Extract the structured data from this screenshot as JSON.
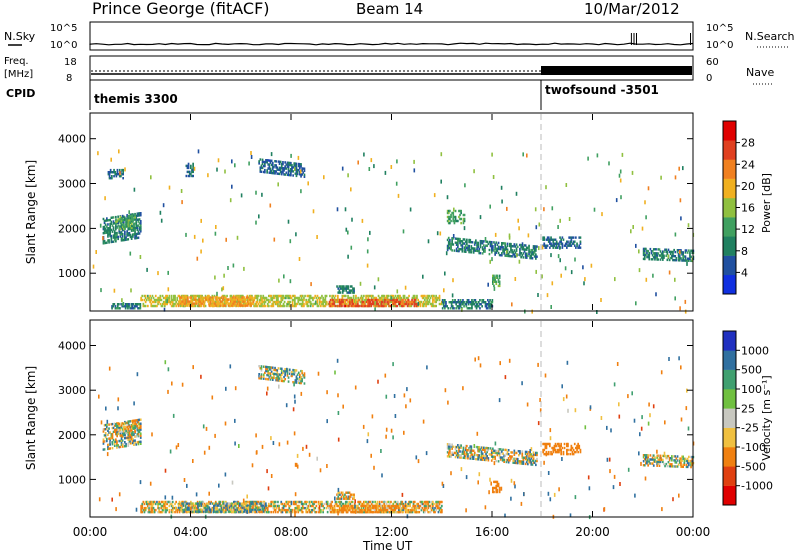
{
  "header": {
    "station": "Prince George (fitACF)",
    "beam": "Beam 14",
    "date": "10/Mar/2012"
  },
  "top_panel": {
    "left_label": "N.Sky",
    "left_ticks": [
      "10^5",
      "10^0"
    ],
    "right_label": "N.Search",
    "right_ticks": [
      "10^5",
      "10^0"
    ]
  },
  "freq_panel": {
    "left_label_1": "Freq.",
    "left_label_2": "[MHz]",
    "left_ticks": [
      "18",
      "8"
    ],
    "right_label": "Nave",
    "right_ticks": [
      "60",
      "0"
    ]
  },
  "cpid_panel": {
    "label": "CPID",
    "mode1": "themis 3300",
    "mode2": "twofsound -3501"
  },
  "power_panel": {
    "ylabel": "Slant Range [km]",
    "yticks": [
      "4000",
      "3000",
      "2000",
      "1000"
    ],
    "colorbar_label": "Power [dB]",
    "colorbar_ticks": [
      "28",
      "24",
      "20",
      "16",
      "12",
      "8",
      "4"
    ],
    "colors": [
      "#1030e0",
      "#2050a0",
      "#208060",
      "#40a060",
      "#90c040",
      "#f0b020",
      "#f08020",
      "#e04020",
      "#e00000"
    ]
  },
  "velocity_panel": {
    "ylabel": "Slant Range [km]",
    "yticks": [
      "4000",
      "3000",
      "2000",
      "1000"
    ],
    "colorbar_label": "Velocity [m s⁻¹]",
    "colorbar_ticks": [
      "1000",
      "500",
      "100",
      "25",
      "-25",
      "-100",
      "-500",
      "-1000"
    ],
    "colors": [
      "#2030c0",
      "#3070a0",
      "#40a070",
      "#70c040",
      "#c8c8c0",
      "#f0c040",
      "#f08010",
      "#e04010",
      "#e00000"
    ]
  },
  "x_axis": {
    "label": "Time UT",
    "ticks": [
      "00:00",
      "04:00",
      "08:00",
      "12:00",
      "16:00",
      "20:00",
      "00:00"
    ]
  },
  "chart_data": [
    {
      "type": "line",
      "title": "Prince George (fitACF)",
      "series": [
        {
          "name": "N.Sky",
          "x": [
            0,
            4,
            8,
            12,
            16,
            20,
            21.6,
            22,
            24
          ],
          "values": [
            1,
            1,
            1,
            1,
            1,
            1,
            1000,
            1,
            1000
          ]
        },
        {
          "name": "N.Search",
          "x": [
            0,
            4,
            8,
            12,
            16,
            20,
            24
          ],
          "values": [
            1,
            1,
            1,
            1,
            1,
            1,
            1
          ]
        }
      ],
      "xlim": [
        0,
        24
      ]
    },
    {
      "type": "line",
      "xlabel": "Time UT",
      "series": [
        {
          "name": "Freq.",
          "x": [
            0,
            18,
            18,
            24
          ],
          "values": [
            10.5,
            10.5,
            10.5,
            10.5
          ]
        },
        {
          "name": "Nave",
          "x": [
            0,
            18,
            18,
            24
          ],
          "values": [
            10,
            10,
            35,
            35
          ]
        }
      ],
      "xlim": [
        0,
        24
      ]
    },
    {
      "type": "heatmap",
      "title": "Power [dB]",
      "xlabel": "Time UT",
      "ylabel": "Slant Range [km]",
      "xlim": [
        0,
        24
      ],
      "ylim": [
        180,
        4550
      ],
      "clim": [
        0,
        30
      ],
      "regions": [
        {
          "t0": 0.5,
          "t1": 2.0,
          "r0": 1650,
          "r1": 2200,
          "level": 8,
          "tilt": 0.4
        },
        {
          "t0": 1.0,
          "t1": 1.8,
          "r0": 1950,
          "r1": 2250,
          "level": 12,
          "tilt": 0.3
        },
        {
          "t0": 0.7,
          "t1": 1.3,
          "r0": 3100,
          "r1": 3300,
          "level": 6,
          "tilt": 0
        },
        {
          "t0": 6.7,
          "t1": 8.5,
          "r0": 3250,
          "r1": 3550,
          "level": 6,
          "tilt": -0.3
        },
        {
          "t0": 3.8,
          "t1": 4.1,
          "r0": 3150,
          "r1": 3450,
          "level": 6,
          "tilt": 0
        },
        {
          "t0": 2.0,
          "t1": 14.0,
          "r0": 250,
          "r1": 480,
          "level": 16,
          "tilt": 0
        },
        {
          "t0": 3.5,
          "t1": 6.5,
          "r0": 260,
          "r1": 450,
          "level": 20,
          "tilt": 0
        },
        {
          "t0": 9.5,
          "t1": 13.0,
          "r0": 250,
          "r1": 420,
          "level": 24,
          "tilt": 0
        },
        {
          "t0": 0.8,
          "t1": 2.0,
          "r0": 200,
          "r1": 320,
          "level": 8,
          "tilt": 0
        },
        {
          "t0": 14.0,
          "t1": 16.0,
          "r0": 200,
          "r1": 400,
          "level": 8,
          "tilt": 0
        },
        {
          "t0": 14.2,
          "t1": 17.8,
          "r0": 1500,
          "r1": 1800,
          "level": 8,
          "tilt": -0.25
        },
        {
          "t0": 14.2,
          "t1": 14.9,
          "r0": 2100,
          "r1": 2400,
          "level": 12,
          "tilt": 0
        },
        {
          "t0": 18.0,
          "t1": 19.5,
          "r0": 1550,
          "r1": 1800,
          "level": 6,
          "tilt": 0
        },
        {
          "t0": 22.0,
          "t1": 24.0,
          "r0": 1300,
          "r1": 1550,
          "level": 8,
          "tilt": -0.1
        },
        {
          "t0": 9.8,
          "t1": 10.5,
          "r0": 550,
          "r1": 700,
          "level": 8,
          "tilt": 0
        },
        {
          "t0": 16.0,
          "t1": 16.3,
          "r0": 700,
          "r1": 950,
          "level": 12,
          "tilt": 0
        }
      ]
    },
    {
      "type": "heatmap",
      "title": "Velocity [m s⁻¹]",
      "xlabel": "Time UT",
      "ylabel": "Slant Range [km]",
      "xlim": [
        0,
        24
      ],
      "ylim": [
        180,
        4550
      ],
      "clim": [
        -1000,
        1000
      ],
      "regions": [
        {
          "t0": 0.5,
          "t1": 2.0,
          "r0": 1650,
          "r1": 2200,
          "level": 0,
          "tilt": 0.4
        },
        {
          "t0": 1.0,
          "t1": 1.8,
          "r0": 1950,
          "r1": 2250,
          "level": -60,
          "tilt": 0.3
        },
        {
          "t0": 6.7,
          "t1": 8.5,
          "r0": 3250,
          "r1": 3550,
          "level": 0,
          "tilt": -0.3
        },
        {
          "t0": 2.0,
          "t1": 14.0,
          "r0": 250,
          "r1": 480,
          "level": -60,
          "tilt": 0
        },
        {
          "t0": 3.5,
          "t1": 7.0,
          "r0": 260,
          "r1": 450,
          "level": 60,
          "tilt": 0
        },
        {
          "t0": 9.5,
          "t1": 13.0,
          "r0": 250,
          "r1": 420,
          "level": -200,
          "tilt": 0
        },
        {
          "t0": 14.2,
          "t1": 17.8,
          "r0": 1500,
          "r1": 1800,
          "level": 0,
          "tilt": -0.25
        },
        {
          "t0": 18.0,
          "t1": 19.5,
          "r0": 1550,
          "r1": 1800,
          "level": -300,
          "tilt": 0
        },
        {
          "t0": 22.0,
          "t1": 24.0,
          "r0": 1300,
          "r1": 1550,
          "level": 0,
          "tilt": -0.1
        },
        {
          "t0": 9.8,
          "t1": 10.5,
          "r0": 550,
          "r1": 700,
          "level": -60,
          "tilt": 0
        },
        {
          "t0": 16.0,
          "t1": 16.3,
          "r0": 700,
          "r1": 950,
          "level": -300,
          "tilt": 0
        }
      ]
    }
  ]
}
